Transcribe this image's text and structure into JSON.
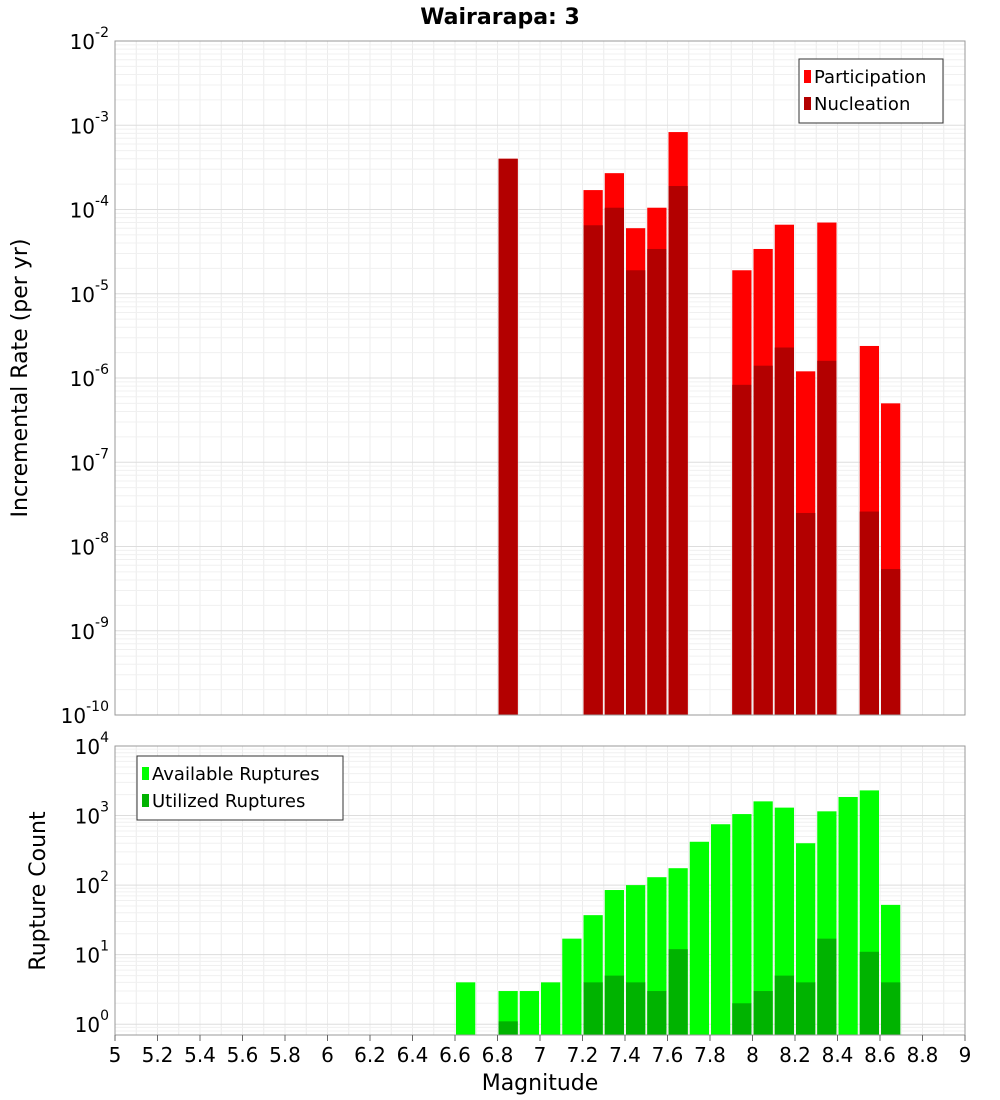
{
  "chart_data": [
    {
      "type": "bar",
      "title": "Wairarapa: 3",
      "xlabel": "",
      "ylabel": "Incremental Rate (per yr)",
      "y_scale": "log",
      "xlim": [
        5,
        9
      ],
      "ylim": [
        1e-10,
        0.01
      ],
      "y_ticks": [
        {
          "base": "10",
          "exp": "-10",
          "value": 1e-10
        },
        {
          "base": "10",
          "exp": "-9",
          "value": 1e-09
        },
        {
          "base": "10",
          "exp": "-8",
          "value": 1e-08
        },
        {
          "base": "10",
          "exp": "-7",
          "value": 1e-07
        },
        {
          "base": "10",
          "exp": "-6",
          "value": 1e-06
        },
        {
          "base": "10",
          "exp": "-5",
          "value": 1e-05
        },
        {
          "base": "10",
          "exp": "-4",
          "value": 0.0001
        },
        {
          "base": "10",
          "exp": "-3",
          "value": 0.001
        },
        {
          "base": "10",
          "exp": "-2",
          "value": 0.01
        }
      ],
      "grid": true,
      "legend_position": "top-right",
      "series": [
        {
          "name": "Participation",
          "color": "#ff0000",
          "points": [
            {
              "x": 6.85,
              "y": 0.0004
            },
            {
              "x": 7.25,
              "y": 0.00017
            },
            {
              "x": 7.35,
              "y": 0.00027
            },
            {
              "x": 7.45,
              "y": 6e-05
            },
            {
              "x": 7.55,
              "y": 0.000105
            },
            {
              "x": 7.65,
              "y": 0.00083
            },
            {
              "x": 7.95,
              "y": 1.9e-05
            },
            {
              "x": 8.05,
              "y": 3.4e-05
            },
            {
              "x": 8.15,
              "y": 6.6e-05
            },
            {
              "x": 8.25,
              "y": 1.2e-06
            },
            {
              "x": 8.35,
              "y": 7e-05
            },
            {
              "x": 8.55,
              "y": 2.4e-06
            },
            {
              "x": 8.65,
              "y": 5e-07
            }
          ]
        },
        {
          "name": "Nucleation",
          "color": "#b30000",
          "points": [
            {
              "x": 6.85,
              "y": 0.0004
            },
            {
              "x": 7.25,
              "y": 6.5e-05
            },
            {
              "x": 7.35,
              "y": 0.000105
            },
            {
              "x": 7.45,
              "y": 1.9e-05
            },
            {
              "x": 7.55,
              "y": 3.4e-05
            },
            {
              "x": 7.65,
              "y": 0.00019
            },
            {
              "x": 7.95,
              "y": 8.3e-07
            },
            {
              "x": 8.05,
              "y": 1.4e-06
            },
            {
              "x": 8.15,
              "y": 2.3e-06
            },
            {
              "x": 8.25,
              "y": 2.5e-08
            },
            {
              "x": 8.35,
              "y": 1.6e-06
            },
            {
              "x": 8.55,
              "y": 2.6e-08
            },
            {
              "x": 8.65,
              "y": 5.4e-09
            }
          ]
        }
      ]
    },
    {
      "type": "bar",
      "title": "",
      "xlabel": "Magnitude",
      "ylabel": "Rupture Count",
      "y_scale": "log",
      "xlim": [
        5,
        9
      ],
      "ylim": [
        0.7,
        10000
      ],
      "x_ticks": [
        "5",
        "5.2",
        "5.4",
        "5.6",
        "5.8",
        "6",
        "6.2",
        "6.4",
        "6.6",
        "6.8",
        "7",
        "7.2",
        "7.4",
        "7.6",
        "7.8",
        "8",
        "8.2",
        "8.4",
        "8.6",
        "8.8",
        "9"
      ],
      "y_ticks": [
        {
          "base": "10",
          "exp": "0",
          "value": 1
        },
        {
          "base": "10",
          "exp": "1",
          "value": 10
        },
        {
          "base": "10",
          "exp": "2",
          "value": 100
        },
        {
          "base": "10",
          "exp": "3",
          "value": 1000
        },
        {
          "base": "10",
          "exp": "4",
          "value": 10000
        }
      ],
      "grid": true,
      "legend_position": "top-left",
      "series": [
        {
          "name": "Available Ruptures",
          "color": "#00ff00",
          "points": [
            {
              "x": 6.65,
              "y": 4
            },
            {
              "x": 6.85,
              "y": 3
            },
            {
              "x": 6.95,
              "y": 3
            },
            {
              "x": 7.05,
              "y": 4
            },
            {
              "x": 7.15,
              "y": 17
            },
            {
              "x": 7.25,
              "y": 37
            },
            {
              "x": 7.35,
              "y": 85
            },
            {
              "x": 7.45,
              "y": 100
            },
            {
              "x": 7.55,
              "y": 130
            },
            {
              "x": 7.65,
              "y": 175
            },
            {
              "x": 7.75,
              "y": 420
            },
            {
              "x": 7.85,
              "y": 750
            },
            {
              "x": 7.95,
              "y": 1050
            },
            {
              "x": 8.05,
              "y": 1600
            },
            {
              "x": 8.15,
              "y": 1300
            },
            {
              "x": 8.25,
              "y": 400
            },
            {
              "x": 8.35,
              "y": 1150
            },
            {
              "x": 8.45,
              "y": 1850
            },
            {
              "x": 8.55,
              "y": 2300
            },
            {
              "x": 8.65,
              "y": 52
            }
          ]
        },
        {
          "name": "Utilized Ruptures",
          "color": "#00b300",
          "points": [
            {
              "x": 6.85,
              "y": 1.1
            },
            {
              "x": 7.25,
              "y": 4
            },
            {
              "x": 7.35,
              "y": 5
            },
            {
              "x": 7.45,
              "y": 4
            },
            {
              "x": 7.55,
              "y": 3
            },
            {
              "x": 7.65,
              "y": 12
            },
            {
              "x": 7.95,
              "y": 2
            },
            {
              "x": 8.05,
              "y": 3
            },
            {
              "x": 8.15,
              "y": 5
            },
            {
              "x": 8.25,
              "y": 4
            },
            {
              "x": 8.35,
              "y": 17
            },
            {
              "x": 8.55,
              "y": 11
            },
            {
              "x": 8.65,
              "y": 4
            }
          ]
        }
      ]
    }
  ]
}
